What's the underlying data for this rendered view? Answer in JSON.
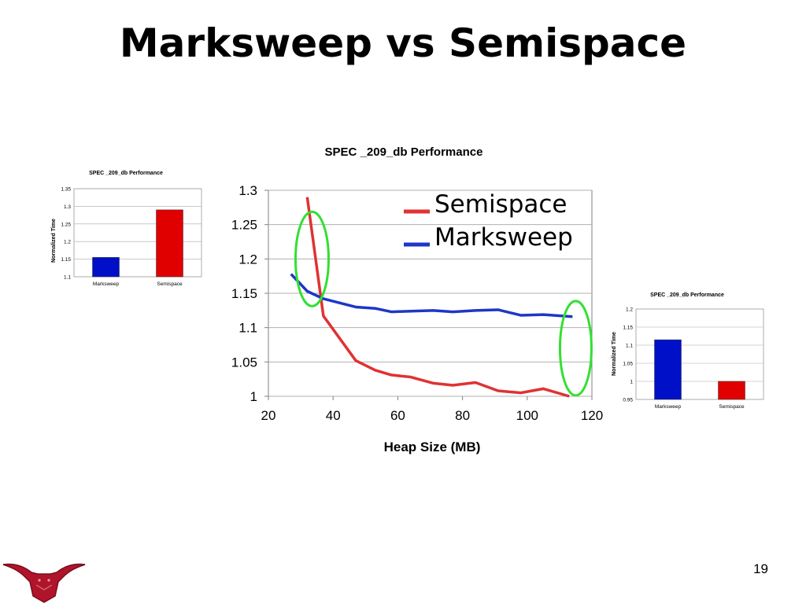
{
  "slide": {
    "title": "Marksweep vs Semispace",
    "page_number": "19"
  },
  "colors": {
    "semispace": "#e03232",
    "marksweep": "#1f36c8",
    "semispace_bar": "#e00000",
    "marksweep_bar": "#0010c8",
    "highlight": "#33e033"
  },
  "icons": [
    "longhorn-logo-icon"
  ],
  "chart_data": [
    {
      "type": "bar",
      "title": "SPEC _209_db Performance",
      "ylabel": "Normalized Time",
      "categories": [
        "Marksweep",
        "Semispace"
      ],
      "values": [
        1.155,
        1.29
      ],
      "ylim": [
        1.1,
        1.35
      ],
      "yticks": [
        "1.1",
        "1.15",
        "1.2",
        "1.25",
        "1.3",
        "1.35"
      ],
      "grid": true
    },
    {
      "type": "line",
      "title": "SPEC _209_db Performance",
      "xlabel": "Heap Size (MB)",
      "ylabel": "",
      "xlim": [
        20,
        120
      ],
      "ylim": [
        1,
        1.3
      ],
      "xticks": [
        "20",
        "40",
        "60",
        "80",
        "100",
        "120"
      ],
      "yticks": [
        "1",
        "1.05",
        "1.1",
        "1.15",
        "1.2",
        "1.25",
        "1.3"
      ],
      "legend_position": "top-right",
      "series": [
        {
          "name": "Semispace",
          "x": [
            32,
            37,
            47,
            53,
            58,
            64,
            71,
            77,
            84,
            91,
            98,
            105,
            113
          ],
          "y": [
            1.29,
            1.117,
            1.052,
            1.038,
            1.031,
            1.028,
            1.019,
            1.016,
            1.02,
            1.008,
            1.005,
            1.011,
            1.0
          ]
        },
        {
          "name": "Marksweep",
          "x": [
            27,
            32,
            37,
            47,
            53,
            58,
            64,
            71,
            77,
            84,
            91,
            98,
            105,
            114
          ],
          "y": [
            1.178,
            1.153,
            1.142,
            1.13,
            1.128,
            1.123,
            1.124,
            1.125,
            1.123,
            1.125,
            1.126,
            1.118,
            1.119,
            1.116
          ]
        }
      ],
      "annotations": [
        "green ellipse around small-heap crossover",
        "green ellipse around large-heap end"
      ]
    },
    {
      "type": "bar",
      "title": "SPEC _209_db Performance",
      "ylabel": "Normalized Time",
      "categories": [
        "Marksweep",
        "Semispace"
      ],
      "values": [
        1.115,
        1.0
      ],
      "ylim": [
        0.95,
        1.2
      ],
      "yticks": [
        "0.95",
        "1",
        "1.05",
        "1.1",
        "1.15",
        "1.2"
      ],
      "grid": true
    }
  ]
}
